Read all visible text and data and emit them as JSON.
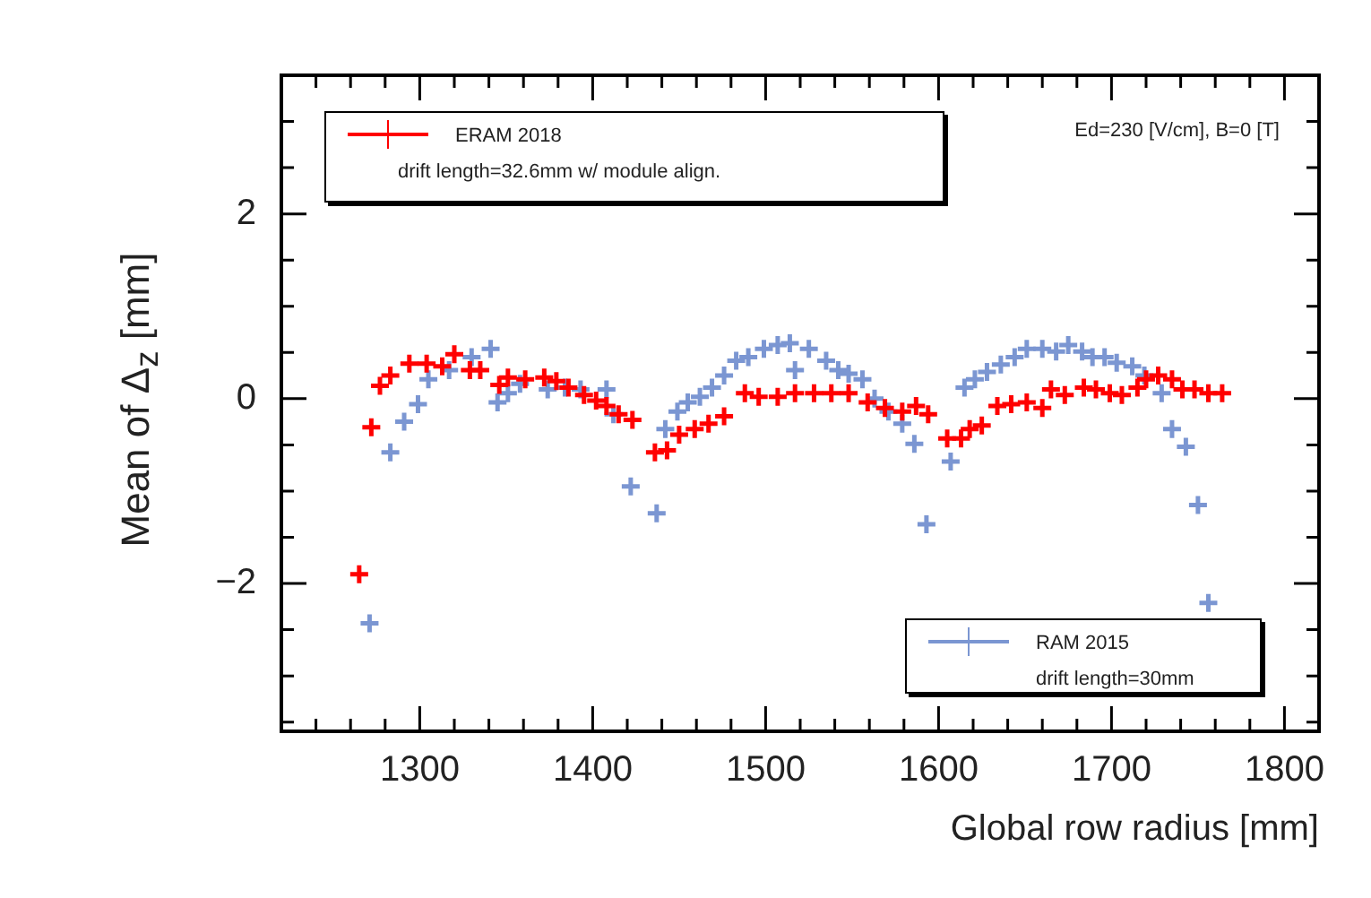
{
  "chart_data": {
    "type": "scatter",
    "xlabel": "Global row radius [mm]",
    "ylabel": "Mean of Δ$_{z}$ [mm]",
    "xlim": [
      1220,
      1820
    ],
    "ylim": [
      -3.6,
      3.5
    ],
    "xticks": [
      {
        "value": 1240,
        "label": null
      },
      {
        "value": 1260,
        "label": null
      },
      {
        "value": 1280,
        "label": null
      },
      1300,
      {
        "value": 1320,
        "label": null
      },
      {
        "value": 1340,
        "label": null
      },
      {
        "value": 1360,
        "label": null
      },
      {
        "value": 1380,
        "label": null
      },
      1400,
      {
        "value": 1420,
        "label": null
      },
      {
        "value": 1440,
        "label": null
      },
      {
        "value": 1460,
        "label": null
      },
      {
        "value": 1480,
        "label": null
      },
      1500,
      {
        "value": 1520,
        "label": null
      },
      {
        "value": 1540,
        "label": null
      },
      {
        "value": 1560,
        "label": null
      },
      {
        "value": 1580,
        "label": null
      },
      1600,
      {
        "value": 1620,
        "label": null
      },
      {
        "value": 1640,
        "label": null
      },
      {
        "value": 1660,
        "label": null
      },
      {
        "value": 1680,
        "label": null
      },
      1700,
      {
        "value": 1720,
        "label": null
      },
      {
        "value": 1740,
        "label": null
      },
      {
        "value": 1760,
        "label": null
      },
      {
        "value": 1780,
        "label": null
      },
      1800
    ],
    "yticks": [
      {
        "value": -3.5,
        "label": null
      },
      {
        "value": -3,
        "label": null
      },
      {
        "value": -2.5,
        "label": null
      },
      {
        "value": -2,
        "label": "−2"
      },
      {
        "value": -1.5,
        "label": null
      },
      {
        "value": -1,
        "label": null
      },
      {
        "value": -0.5,
        "label": null
      },
      0,
      {
        "value": 0.5,
        "label": null
      },
      {
        "value": 1,
        "label": null
      },
      {
        "value": 1.5,
        "label": null
      },
      2,
      {
        "value": 2.5,
        "label": null
      },
      {
        "value": 3,
        "label": null
      }
    ],
    "grid": false,
    "legend": "top left",
    "marker": "cross",
    "annotations": [
      "drift length=32.6mm w/ module align.",
      "drift length=30mm",
      "Ed=230 [V/cm], B=0 [T]"
    ],
    "series": [
      {
        "name": "ERAM 2018",
        "color": "#ff0000",
        "x": [
          1265,
          1272,
          1277,
          1283,
          1294,
          1304,
          1313,
          1320,
          1329,
          1335,
          1346,
          1351,
          1361,
          1372,
          1379,
          1386,
          1395,
          1402,
          1408,
          1415,
          1423,
          1436,
          1443,
          1450,
          1459,
          1467,
          1476,
          1488,
          1496,
          1507,
          1517,
          1528,
          1538,
          1548,
          1559,
          1569,
          1579,
          1587,
          1594,
          1605,
          1613,
          1618,
          1625,
          1634,
          1642,
          1651,
          1660,
          1665,
          1673,
          1684,
          1691,
          1699,
          1706,
          1715,
          1720,
          1727,
          1735,
          1741,
          1748,
          1756,
          1764
        ],
        "values": [
          -1.9,
          -0.31,
          0.14,
          0.25,
          0.38,
          0.38,
          0.35,
          0.48,
          0.31,
          0.31,
          0.15,
          0.23,
          0.21,
          0.23,
          0.19,
          0.12,
          0.04,
          -0.02,
          -0.08,
          -0.17,
          -0.23,
          -0.58,
          -0.56,
          -0.39,
          -0.33,
          -0.27,
          -0.19,
          0.06,
          0.02,
          0.02,
          0.06,
          0.06,
          0.06,
          0.06,
          -0.04,
          -0.1,
          -0.14,
          -0.08,
          -0.17,
          -0.43,
          -0.43,
          -0.33,
          -0.29,
          -0.08,
          -0.06,
          -0.04,
          -0.1,
          0.1,
          0.04,
          0.12,
          0.1,
          0.06,
          0.04,
          0.12,
          0.21,
          0.25,
          0.21,
          0.1,
          0.1,
          0.06,
          0.06
        ]
      },
      {
        "name": "RAM 2015",
        "color": "#7b96d2",
        "x": [
          1271,
          1283,
          1291,
          1299,
          1305,
          1317,
          1330,
          1341,
          1345,
          1351,
          1358,
          1374,
          1384,
          1393,
          1408,
          1412,
          1422,
          1437,
          1442,
          1449,
          1455,
          1462,
          1469,
          1476,
          1483,
          1490,
          1499,
          1507,
          1514,
          1517,
          1525,
          1535,
          1542,
          1548,
          1556,
          1563,
          1571,
          1579,
          1586,
          1593,
          1607,
          1615,
          1621,
          1628,
          1636,
          1644,
          1651,
          1660,
          1668,
          1675,
          1683,
          1689,
          1696,
          1703,
          1712,
          1719,
          1729,
          1735,
          1743,
          1750,
          1756
        ],
        "values": [
          -2.43,
          -0.58,
          -0.25,
          -0.06,
          0.21,
          0.31,
          0.45,
          0.54,
          -0.04,
          0.06,
          0.16,
          0.1,
          0.12,
          0.1,
          0.1,
          -0.17,
          -0.95,
          -1.24,
          -0.33,
          -0.14,
          -0.04,
          0.02,
          0.12,
          0.25,
          0.41,
          0.45,
          0.54,
          0.58,
          0.6,
          0.31,
          0.54,
          0.41,
          0.31,
          0.27,
          0.21,
          0,
          -0.14,
          -0.27,
          -0.49,
          -1.36,
          -0.68,
          0.12,
          0.21,
          0.29,
          0.37,
          0.45,
          0.54,
          0.54,
          0.51,
          0.58,
          0.51,
          0.45,
          0.45,
          0.39,
          0.35,
          0.25,
          0.06,
          -0.33,
          -0.52,
          -1.15,
          -2.21
        ]
      }
    ]
  }
}
